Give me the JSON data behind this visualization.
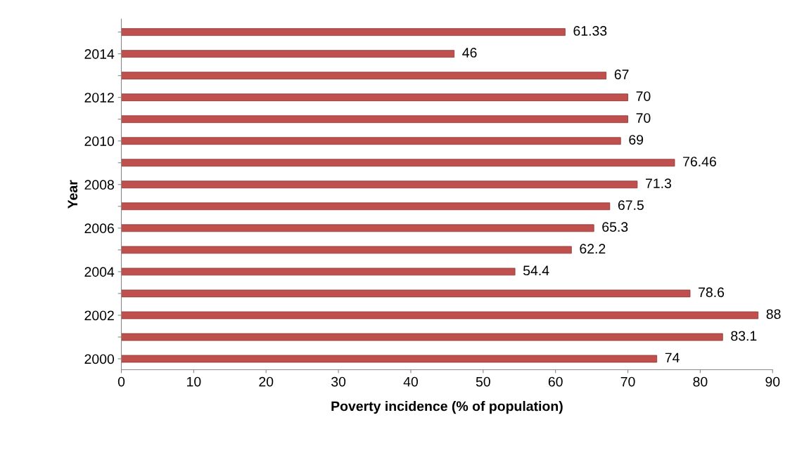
{
  "chart_data": {
    "type": "bar",
    "orientation": "horizontal",
    "xlabel": "Poverty incidence (% of population)",
    "ylabel": "Year",
    "categories": [
      null,
      "2014",
      null,
      "2012",
      null,
      "2010",
      null,
      "2008",
      null,
      "2006",
      null,
      "2004",
      null,
      "2002",
      null,
      "2000"
    ],
    "values": [
      61.33,
      46,
      67,
      70,
      70,
      69,
      76.46,
      71.3,
      67.5,
      65.3,
      62.2,
      54.4,
      78.6,
      88,
      83.1,
      74
    ],
    "color": "#c0504d",
    "xlim": [
      0,
      90
    ],
    "xticks": [
      0,
      10,
      20,
      30,
      40,
      50,
      60,
      70,
      80,
      90
    ],
    "data_labels": true,
    "grid": false
  }
}
